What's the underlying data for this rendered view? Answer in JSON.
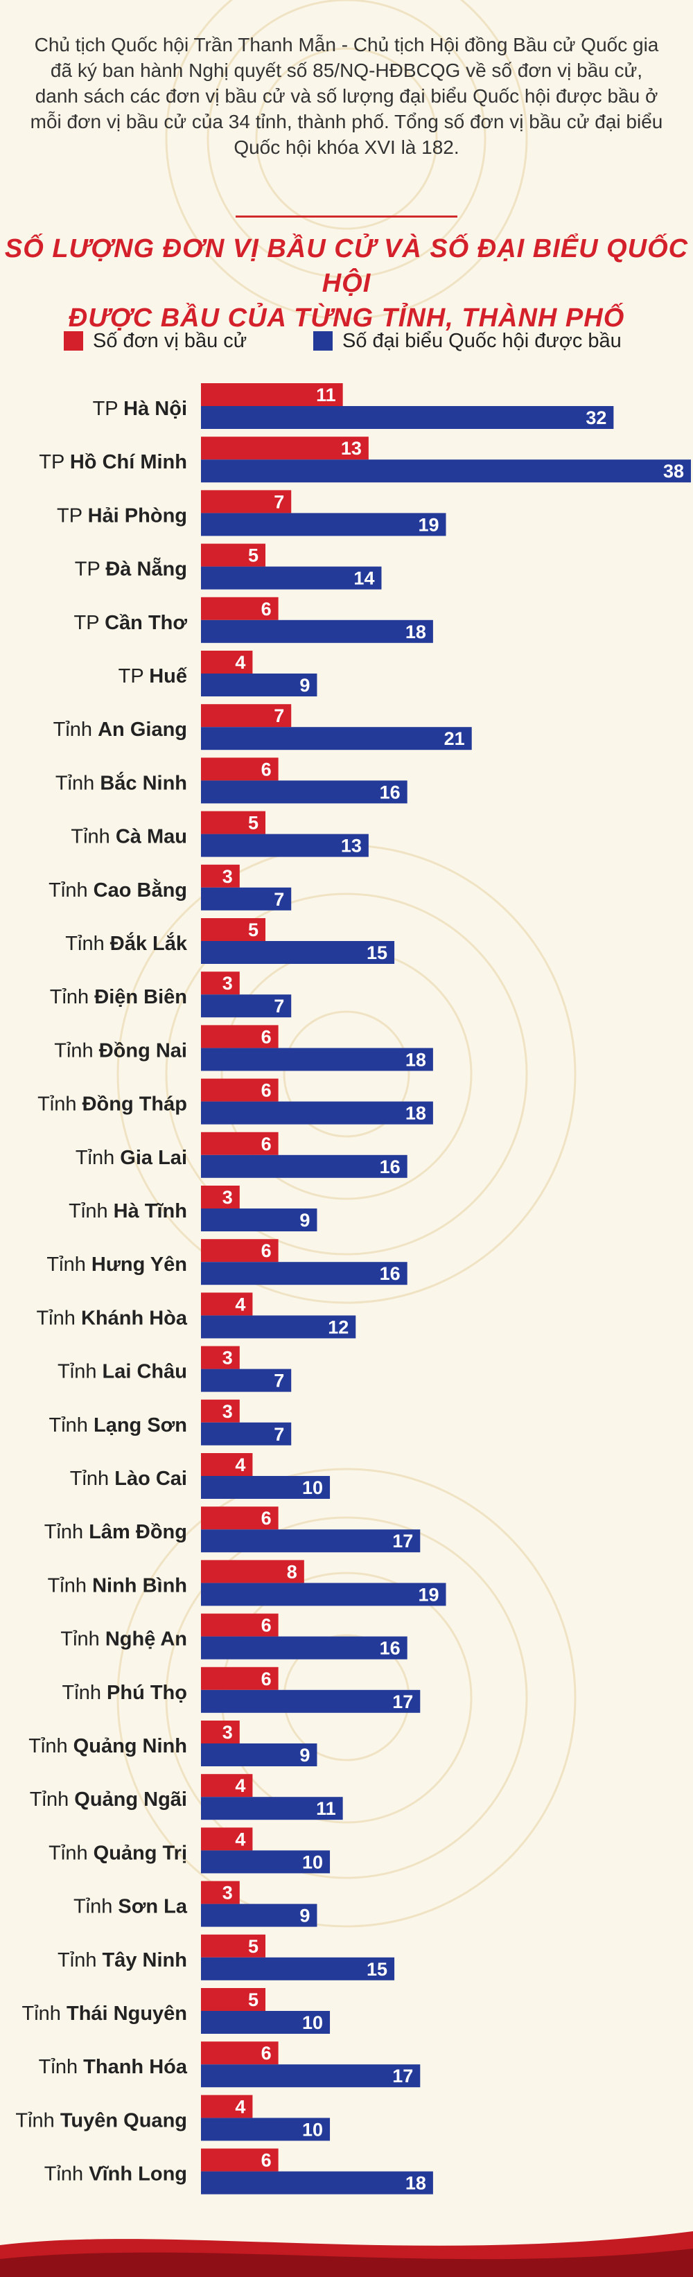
{
  "intro": "Chủ tịch Quốc hội Trần Thanh Mẫn - Chủ tịch Hội đồng Bầu cử Quốc gia đã ký ban hành Nghị quyết số 85/NQ-HĐBCQG về số đơn vị bầu cử, danh sách các đơn vị bầu cử và số lượng đại biểu Quốc hội được bầu ở mỗi đơn vị bầu cử của 34 tỉnh, thành phố. Tổng số đơn vị bầu cử đại biểu Quốc hội khóa XVI là 182.",
  "title_line1": "SỐ LƯỢNG ĐƠN VỊ BẦU CỬ VÀ SỐ ĐẠI BIỂU QUỐC HỘI",
  "title_line2": "ĐƯỢC BẦU CỦA TỪNG TỈNH, THÀNH PHỐ",
  "colors": {
    "red": "#d4202a",
    "blue": "#243a98",
    "title": "#d4202a"
  },
  "chart_data": {
    "type": "bar",
    "orientation": "horizontal",
    "title": "SỐ LƯỢNG ĐƠN VỊ BẦU CỬ VÀ SỐ ĐẠI BIỂU QUỐC HỘI ĐƯỢC BẦU CỦA TỪNG TỈNH, THÀNH PHỐ",
    "legend_position": "top",
    "categories": [
      {
        "prefix": "TP",
        "name": "Hà Nội"
      },
      {
        "prefix": "TP",
        "name": "Hồ Chí Minh"
      },
      {
        "prefix": "TP",
        "name": "Hải Phòng"
      },
      {
        "prefix": "TP",
        "name": "Đà Nẵng"
      },
      {
        "prefix": "TP",
        "name": "Cần Thơ"
      },
      {
        "prefix": "TP",
        "name": "Huế"
      },
      {
        "prefix": "Tỉnh",
        "name": "An Giang"
      },
      {
        "prefix": "Tỉnh",
        "name": "Bắc Ninh"
      },
      {
        "prefix": "Tỉnh",
        "name": "Cà Mau"
      },
      {
        "prefix": "Tỉnh",
        "name": "Cao Bằng"
      },
      {
        "prefix": "Tỉnh",
        "name": "Đắk Lắk"
      },
      {
        "prefix": "Tỉnh",
        "name": "Điện Biên"
      },
      {
        "prefix": "Tỉnh",
        "name": "Đồng Nai"
      },
      {
        "prefix": "Tỉnh",
        "name": "Đồng Tháp"
      },
      {
        "prefix": "Tỉnh",
        "name": "Gia Lai"
      },
      {
        "prefix": "Tỉnh",
        "name": "Hà Tĩnh"
      },
      {
        "prefix": "Tỉnh",
        "name": "Hưng Yên"
      },
      {
        "prefix": "Tỉnh",
        "name": "Khánh Hòa"
      },
      {
        "prefix": "Tỉnh",
        "name": "Lai Châu"
      },
      {
        "prefix": "Tỉnh",
        "name": "Lạng Sơn"
      },
      {
        "prefix": "Tỉnh",
        "name": "Lào Cai"
      },
      {
        "prefix": "Tỉnh",
        "name": "Lâm Đồng"
      },
      {
        "prefix": "Tỉnh",
        "name": "Ninh Bình"
      },
      {
        "prefix": "Tỉnh",
        "name": "Nghệ An"
      },
      {
        "prefix": "Tỉnh",
        "name": "Phú Thọ"
      },
      {
        "prefix": "Tỉnh",
        "name": "Quảng Ninh"
      },
      {
        "prefix": "Tỉnh",
        "name": "Quảng Ngãi"
      },
      {
        "prefix": "Tỉnh",
        "name": "Quảng Trị"
      },
      {
        "prefix": "Tỉnh",
        "name": "Sơn La"
      },
      {
        "prefix": "Tỉnh",
        "name": "Tây Ninh"
      },
      {
        "prefix": "Tỉnh",
        "name": "Thái Nguyên"
      },
      {
        "prefix": "Tỉnh",
        "name": "Thanh Hóa"
      },
      {
        "prefix": "Tỉnh",
        "name": "Tuyên Quang"
      },
      {
        "prefix": "Tỉnh",
        "name": "Vĩnh Long"
      }
    ],
    "series": [
      {
        "name": "Số đơn vị bầu cử",
        "color": "#d4202a",
        "values": [
          11,
          13,
          7,
          5,
          6,
          4,
          7,
          6,
          5,
          3,
          5,
          3,
          6,
          6,
          6,
          3,
          6,
          4,
          3,
          3,
          4,
          6,
          8,
          6,
          6,
          3,
          4,
          4,
          3,
          5,
          5,
          6,
          4,
          6
        ]
      },
      {
        "name": "Số đại biểu Quốc hội được bầu",
        "color": "#243a98",
        "values": [
          32,
          38,
          19,
          14,
          18,
          9,
          21,
          16,
          13,
          7,
          15,
          7,
          18,
          18,
          16,
          9,
          16,
          12,
          7,
          7,
          10,
          17,
          19,
          16,
          17,
          9,
          11,
          10,
          9,
          15,
          10,
          17,
          10,
          18
        ]
      }
    ],
    "xlim": [
      0,
      38
    ]
  }
}
